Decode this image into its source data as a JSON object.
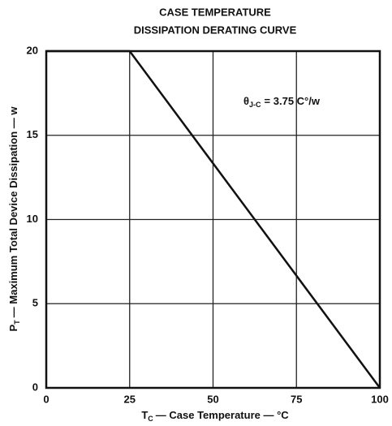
{
  "chart_data": {
    "type": "line",
    "title": [
      "CASE TEMPERATURE",
      "DISSIPATION DERATING CURVE"
    ],
    "x_label": {
      "symbol": "T",
      "subscript": "C",
      "text": "— Case Temperature — °C"
    },
    "y_label": {
      "symbol": "P",
      "subscript": "T",
      "text": "— Maximum Total Device Dissipation — w"
    },
    "annotation": {
      "symbol": "θ",
      "subscript": "J-C",
      "text": "= 3.75 C°/w"
    },
    "x": [
      0,
      25,
      100
    ],
    "series": [
      {
        "color": "#111111",
        "values": [
          20,
          20,
          0
        ]
      }
    ],
    "xlim": [
      0,
      100
    ],
    "xticks": [
      0,
      25,
      50,
      75,
      100
    ],
    "ylim": [
      0,
      20
    ],
    "yticks": [
      0,
      5,
      10,
      15,
      20
    ],
    "grid": true
  }
}
